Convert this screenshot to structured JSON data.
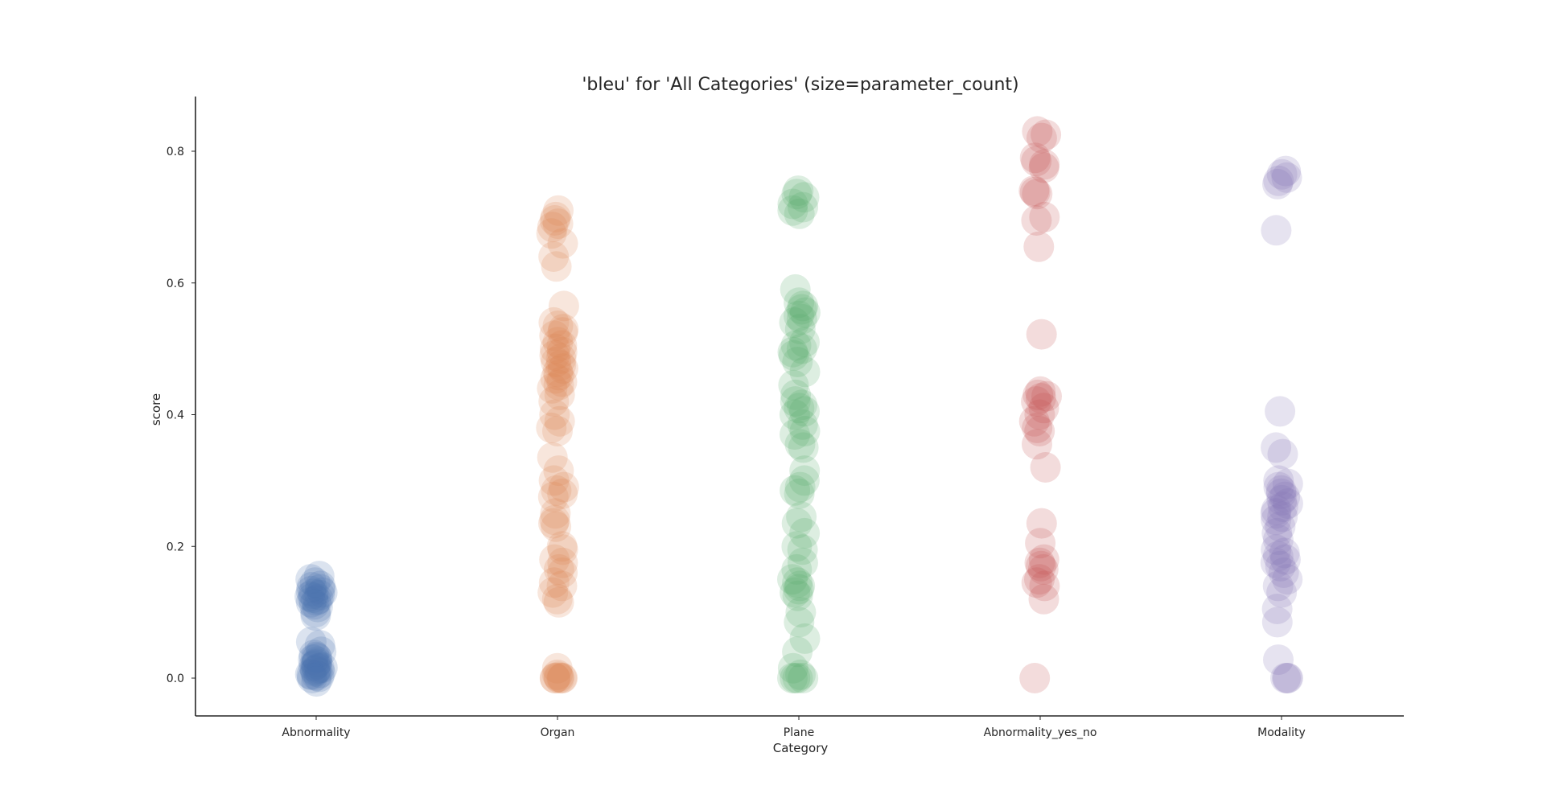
{
  "chart_data": {
    "type": "scatter",
    "title": "'bleu' for 'All Categories' (size=parameter_count)",
    "xlabel": "Category",
    "ylabel": "score",
    "ylim": [
      -0.058,
      0.88
    ],
    "yticks": [
      "0.0",
      "0.2",
      "0.4",
      "0.6",
      "0.8"
    ],
    "ytick_values": [
      0.0,
      0.2,
      0.4,
      0.6,
      0.8
    ],
    "grid": false,
    "legend": "none",
    "categories": [
      "Abnormality",
      "Organ",
      "Plane",
      "Abnormality_yes_no",
      "Modality"
    ],
    "colors": [
      "#4c72b0",
      "#dd8452",
      "#55a868",
      "#c44e52",
      "#8172b3"
    ],
    "series": [
      {
        "category": "Abnormality",
        "values": [
          0.155,
          0.15,
          0.145,
          0.14,
          0.138,
          0.135,
          0.132,
          0.13,
          0.128,
          0.126,
          0.124,
          0.122,
          0.12,
          0.118,
          0.115,
          0.112,
          0.108,
          0.1,
          0.095,
          0.055,
          0.05,
          0.04,
          0.035,
          0.032,
          0.03,
          0.028,
          0.025,
          0.022,
          0.02,
          0.018,
          0.016,
          0.015,
          0.014,
          0.012,
          0.01,
          0.008,
          0.006,
          0.005,
          0.004,
          0.002,
          0.0,
          -0.005
        ]
      },
      {
        "category": "Organ",
        "values": [
          0.71,
          0.7,
          0.695,
          0.69,
          0.685,
          0.675,
          0.66,
          0.64,
          0.625,
          0.565,
          0.54,
          0.535,
          0.53,
          0.525,
          0.52,
          0.51,
          0.505,
          0.5,
          0.495,
          0.49,
          0.485,
          0.48,
          0.475,
          0.47,
          0.465,
          0.46,
          0.455,
          0.45,
          0.445,
          0.44,
          0.43,
          0.42,
          0.4,
          0.39,
          0.38,
          0.375,
          0.335,
          0.315,
          0.3,
          0.29,
          0.285,
          0.28,
          0.275,
          0.25,
          0.24,
          0.235,
          0.23,
          0.2,
          0.195,
          0.18,
          0.175,
          0.165,
          0.16,
          0.145,
          0.14,
          0.13,
          0.12,
          0.115,
          0.015,
          0.005,
          0.002,
          0.0,
          0.0,
          0.0,
          0.0,
          0.0
        ]
      },
      {
        "category": "Plane",
        "values": [
          0.74,
          0.735,
          0.73,
          0.72,
          0.715,
          0.71,
          0.705,
          0.59,
          0.57,
          0.565,
          0.56,
          0.555,
          0.55,
          0.545,
          0.54,
          0.53,
          0.51,
          0.505,
          0.5,
          0.495,
          0.49,
          0.48,
          0.465,
          0.445,
          0.43,
          0.42,
          0.415,
          0.41,
          0.405,
          0.4,
          0.385,
          0.375,
          0.37,
          0.355,
          0.35,
          0.315,
          0.3,
          0.29,
          0.285,
          0.28,
          0.245,
          0.235,
          0.22,
          0.2,
          0.195,
          0.175,
          0.165,
          0.15,
          0.145,
          0.14,
          0.135,
          0.13,
          0.125,
          0.1,
          0.085,
          0.06,
          0.04,
          0.015,
          0.005,
          0.0,
          0.0,
          0.0,
          0.0
        ]
      },
      {
        "category": "Abnormality_yes_no",
        "values": [
          0.83,
          0.825,
          0.82,
          0.79,
          0.785,
          0.78,
          0.775,
          0.74,
          0.738,
          0.735,
          0.7,
          0.695,
          0.655,
          0.522,
          0.435,
          0.43,
          0.428,
          0.425,
          0.42,
          0.41,
          0.4,
          0.39,
          0.38,
          0.375,
          0.355,
          0.32,
          0.235,
          0.205,
          0.18,
          0.175,
          0.17,
          0.165,
          0.15,
          0.145,
          0.14,
          0.12,
          0.0
        ]
      },
      {
        "category": "Modality",
        "values": [
          0.77,
          0.765,
          0.76,
          0.755,
          0.75,
          0.68,
          0.405,
          0.35,
          0.34,
          0.3,
          0.295,
          0.29,
          0.285,
          0.28,
          0.275,
          0.27,
          0.265,
          0.26,
          0.255,
          0.25,
          0.245,
          0.24,
          0.23,
          0.22,
          0.21,
          0.195,
          0.19,
          0.185,
          0.18,
          0.175,
          0.17,
          0.16,
          0.15,
          0.14,
          0.13,
          0.105,
          0.085,
          0.028,
          0.0,
          0.0,
          0.0
        ]
      }
    ]
  }
}
